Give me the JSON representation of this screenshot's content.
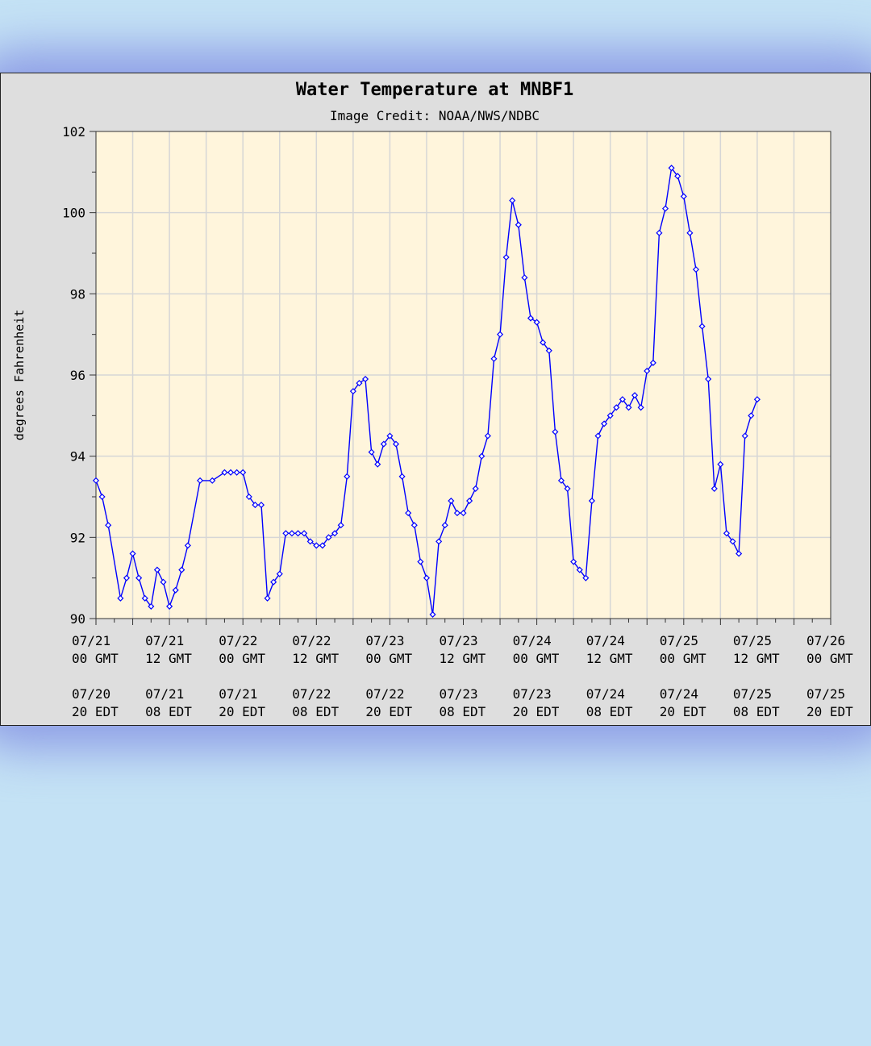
{
  "chart_data": {
    "type": "line",
    "title": "Water Temperature at MNBF1",
    "subtitle": "Image Credit: NOAA/NWS/NDBC",
    "xlabel": "",
    "ylabel": "degrees Fahrenheit",
    "ylim": [
      90,
      102
    ],
    "y_ticks": [
      90,
      92,
      94,
      96,
      98,
      100,
      102
    ],
    "x_range_hours_gmt": [
      "07/21 00 GMT",
      "07/26 00 GMT"
    ],
    "x_tick_labels_gmt": [
      [
        "07/21",
        "00 GMT"
      ],
      [
        "07/21",
        "12 GMT"
      ],
      [
        "07/22",
        "00 GMT"
      ],
      [
        "07/22",
        "12 GMT"
      ],
      [
        "07/23",
        "00 GMT"
      ],
      [
        "07/23",
        "12 GMT"
      ],
      [
        "07/24",
        "00 GMT"
      ],
      [
        "07/24",
        "12 GMT"
      ],
      [
        "07/25",
        "00 GMT"
      ],
      [
        "07/25",
        "12 GMT"
      ],
      [
        "07/26",
        "00 GMT"
      ]
    ],
    "x_tick_labels_edt": [
      [
        "07/20",
        "20 EDT"
      ],
      [
        "07/21",
        "08 EDT"
      ],
      [
        "07/21",
        "20 EDT"
      ],
      [
        "07/22",
        "08 EDT"
      ],
      [
        "07/22",
        "20 EDT"
      ],
      [
        "07/23",
        "08 EDT"
      ],
      [
        "07/23",
        "20 EDT"
      ],
      [
        "07/24",
        "08 EDT"
      ],
      [
        "07/24",
        "20 EDT"
      ],
      [
        "07/25",
        "08 EDT"
      ],
      [
        "07/25",
        "20 EDT"
      ]
    ],
    "grid": true,
    "legend": "none",
    "colors": {
      "line": "#0000ff",
      "plot_bg": "#fff5dc",
      "frame_bg": "#dedede",
      "grid": "#d6d6d6"
    },
    "series": [
      {
        "x_hours_since_0721_00GMT": [
          0,
          1,
          2,
          4,
          5,
          6,
          7,
          8,
          9,
          10,
          11,
          12,
          13,
          14,
          15,
          17,
          19,
          21,
          22,
          23,
          24,
          25,
          26,
          27,
          28,
          29,
          30,
          31,
          32,
          33,
          34,
          35,
          36,
          37,
          38,
          39,
          40,
          41,
          42,
          43,
          44,
          45,
          46,
          47,
          48,
          49,
          50,
          51,
          52,
          53,
          54,
          55,
          56,
          57,
          58,
          59,
          60,
          61,
          62,
          63,
          64,
          65,
          66,
          67,
          68,
          69,
          70,
          71,
          72,
          73,
          74,
          75,
          76,
          77,
          78,
          79,
          80,
          81,
          82,
          83,
          84,
          85,
          86,
          87,
          88,
          89,
          90,
          91,
          92,
          93,
          94,
          95,
          96,
          97,
          98,
          99,
          100,
          101,
          102,
          103,
          104,
          105,
          106,
          107,
          108
        ],
        "values": [
          93.4,
          93.0,
          92.3,
          90.5,
          91.0,
          91.6,
          91.0,
          90.5,
          90.3,
          91.2,
          90.9,
          90.3,
          90.7,
          91.2,
          91.8,
          93.4,
          93.4,
          93.6,
          93.6,
          93.6,
          93.6,
          93.0,
          92.8,
          92.8,
          90.5,
          90.9,
          91.1,
          92.1,
          92.1,
          92.1,
          92.1,
          91.9,
          91.8,
          91.8,
          92.0,
          92.1,
          92.3,
          93.5,
          95.6,
          95.8,
          95.9,
          94.1,
          93.8,
          94.3,
          94.5,
          94.3,
          93.5,
          92.6,
          92.3,
          91.4,
          91.0,
          90.1,
          91.9,
          92.3,
          92.9,
          92.6,
          92.6,
          92.9,
          93.2,
          94.0,
          94.5,
          96.4,
          97.0,
          98.9,
          100.3,
          99.7,
          98.4,
          97.4,
          97.3,
          96.8,
          96.6,
          94.6,
          93.4,
          93.2,
          91.4,
          91.2,
          91.0,
          92.9,
          94.5,
          94.8,
          95.0,
          95.2,
          95.4,
          95.2,
          95.5,
          95.2,
          96.1,
          96.3,
          99.5,
          100.1,
          101.1,
          100.9,
          100.4,
          99.5,
          98.6,
          97.2,
          95.9,
          93.2,
          93.8,
          92.1,
          91.9,
          91.6,
          94.5,
          95.0,
          95.4
        ]
      }
    ]
  }
}
